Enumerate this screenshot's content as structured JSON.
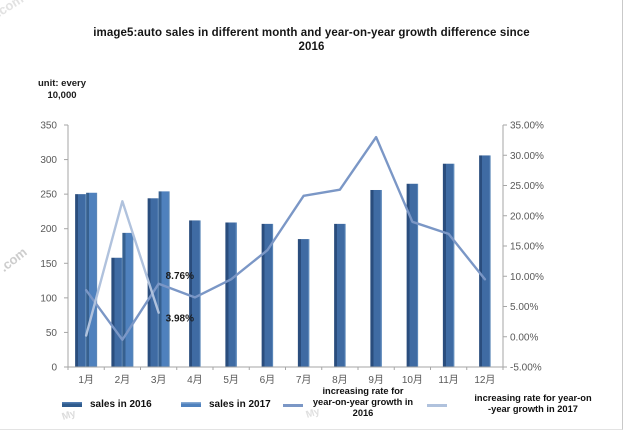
{
  "title": {
    "line1": "image5:auto sales in different month and year-on-year growth difference since",
    "line2": "2016"
  },
  "unit_label": {
    "line1": "unit: every",
    "line2": "10,000"
  },
  "watermarks": {
    "com": ".com",
    "my": "My"
  },
  "chart_data": {
    "type": "bar",
    "subtype": "bar+line combo, dual y-axis",
    "categories": [
      "1月",
      "2月",
      "3月",
      "4月",
      "5月",
      "6月",
      "7月",
      "8月",
      "9月",
      "10月",
      "11月",
      "12月"
    ],
    "left_axis": {
      "min": 0,
      "max": 350,
      "step": 50,
      "ticks": [
        "0",
        "50",
        "100",
        "150",
        "200",
        "250",
        "300",
        "350"
      ]
    },
    "right_axis": {
      "min": -5,
      "max": 35,
      "step": 5,
      "ticks": [
        "-5.00%",
        "0.00%",
        "5.00%",
        "10.00%",
        "15.00%",
        "20.00%",
        "25.00%",
        "30.00%",
        "35.00%"
      ]
    },
    "series": [
      {
        "name": "sales in 2016",
        "type": "bar",
        "axis": "left",
        "color_body": "#3f6ba3",
        "color_edge": "#2a4d7d",
        "values": [
          250,
          158,
          244,
          212,
          209,
          207,
          185,
          207,
          256,
          265,
          294,
          306
        ]
      },
      {
        "name": "sales in 2017",
        "type": "bar",
        "axis": "left",
        "color_body": "#4f81bd",
        "color_edge": "#36608f",
        "values": [
          252,
          194,
          254,
          null,
          null,
          null,
          null,
          null,
          null,
          null,
          null,
          null
        ]
      },
      {
        "name": "increasing rate for year-on-year growth in 2016",
        "type": "line",
        "axis": "right",
        "color": "#7b97c6",
        "values": [
          7.7,
          -0.5,
          8.76,
          6.5,
          9.5,
          14.3,
          23.3,
          24.3,
          33,
          19,
          17,
          9.5
        ]
      },
      {
        "name": "increasing rate for year-on-year growth in 2017",
        "type": "line",
        "axis": "right",
        "color": "#b0c2dd",
        "values": [
          0.2,
          22.4,
          3.98,
          null,
          null,
          null,
          null,
          null,
          null,
          null,
          null,
          null
        ]
      }
    ],
    "annotations": [
      {
        "text": "8.76%",
        "month_index": 2,
        "value": 8.76,
        "position": "above"
      },
      {
        "text": "3.98%",
        "month_index": 2,
        "value": 3.98,
        "position": "below"
      }
    ],
    "grid": "off",
    "legend_position": "bottom"
  },
  "legend": [
    {
      "label": "sales in 2016",
      "swatch": "bar",
      "color": "#2f5b8d"
    },
    {
      "label": "sales in 2017",
      "swatch": "bar",
      "color": "#4f81bd"
    },
    {
      "label_lines": [
        "increasing rate for",
        "year-on-year growth in",
        "2016"
      ],
      "swatch": "line",
      "color": "#7b97c6"
    },
    {
      "label_lines": [
        "increasing rate for year-on",
        "-year growth in 2017"
      ],
      "swatch": "line",
      "color": "#b0c2dd"
    }
  ]
}
